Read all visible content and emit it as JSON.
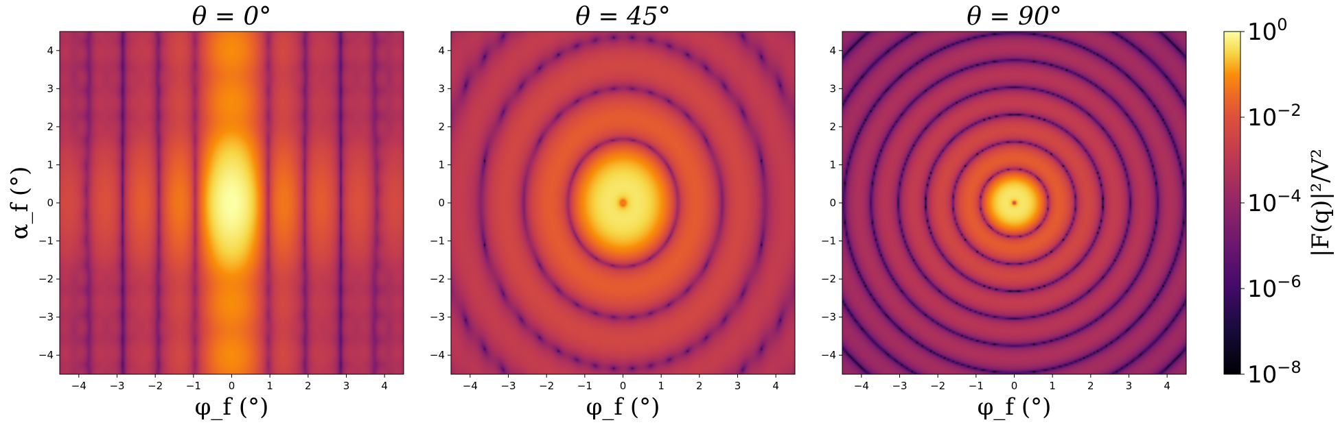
{
  "chart_data": {
    "type": "heatmap",
    "panels": [
      {
        "title_text": "θ = 0°",
        "theta_deg": 0,
        "pattern": "elongated-vertical-lobes"
      },
      {
        "title_text": "θ = 45°",
        "theta_deg": 45,
        "pattern": "elliptical-rings"
      },
      {
        "title_text": "θ = 90°",
        "theta_deg": 90,
        "pattern": "concentric-rings"
      }
    ],
    "xlabel": "φ_f (°)",
    "ylabel": "α_f (°)",
    "xlim": [
      -4.5,
      4.5
    ],
    "ylim": [
      -4.5,
      4.5
    ],
    "xticks": [
      -4,
      -3,
      -2,
      -1,
      0,
      1,
      2,
      3,
      4
    ],
    "yticks": [
      -4,
      -3,
      -2,
      -1,
      0,
      1,
      2,
      3,
      4
    ],
    "colorbar": {
      "label": "|F(q)|²/V²",
      "scale": "log",
      "colormap": "inferno",
      "range": [
        1e-08,
        1
      ],
      "ticks": [
        {
          "value": 1,
          "base": "10",
          "exp": "0"
        },
        {
          "value": 0.01,
          "base": "10",
          "exp": "−2"
        },
        {
          "value": 0.0001,
          "base": "10",
          "exp": "−4"
        },
        {
          "value": 1e-06,
          "base": "10",
          "exp": "−6"
        },
        {
          "value": 1e-08,
          "base": "10",
          "exp": "−8"
        }
      ]
    }
  }
}
